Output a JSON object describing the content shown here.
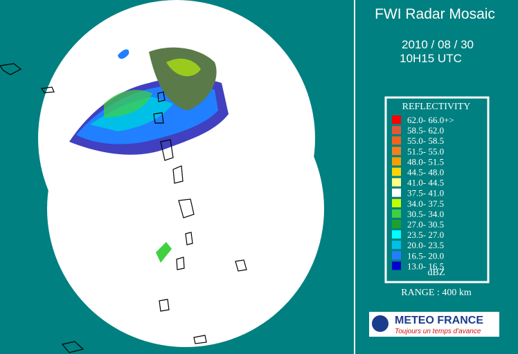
{
  "header": {
    "title": "FWI Radar Mosaic",
    "date": "2010 / 08 / 30",
    "time": "10H15 UTC"
  },
  "legend": {
    "title": "REFLECTIVITY",
    "unit": "dBZ",
    "entries": [
      {
        "label": "62.0- 66.0+>",
        "color": "#ff0000"
      },
      {
        "label": "58.5- 62.0",
        "color": "#e0583a"
      },
      {
        "label": "55.0- 58.5",
        "color": "#f0641e"
      },
      {
        "label": "51.5- 55.0",
        "color": "#f08020"
      },
      {
        "label": "48.0- 51.5",
        "color": "#f5a000"
      },
      {
        "label": "44.5- 48.0",
        "color": "#ffd400"
      },
      {
        "label": "41.0- 44.5",
        "color": "#ffff88"
      },
      {
        "label": "37.5- 41.0",
        "color": "#ffffff"
      },
      {
        "label": "34.0- 37.5",
        "color": "#c4ff00"
      },
      {
        "label": "30.5- 34.0",
        "color": "#40d040"
      },
      {
        "label": "27.0- 30.5",
        "color": "#1fa02a"
      },
      {
        "label": "23.5- 27.0",
        "color": "#00ffff"
      },
      {
        "label": "20.0- 23.5",
        "color": "#00c0e8"
      },
      {
        "label": "16.5- 20.0",
        "color": "#2080ff"
      },
      {
        "label": "13.0- 16.5",
        "color": "#0000d0"
      }
    ]
  },
  "range": "RANGE : 400 km",
  "logo": {
    "name": "METEO FRANCE",
    "tagline": "Toujours un temps d'avance"
  }
}
